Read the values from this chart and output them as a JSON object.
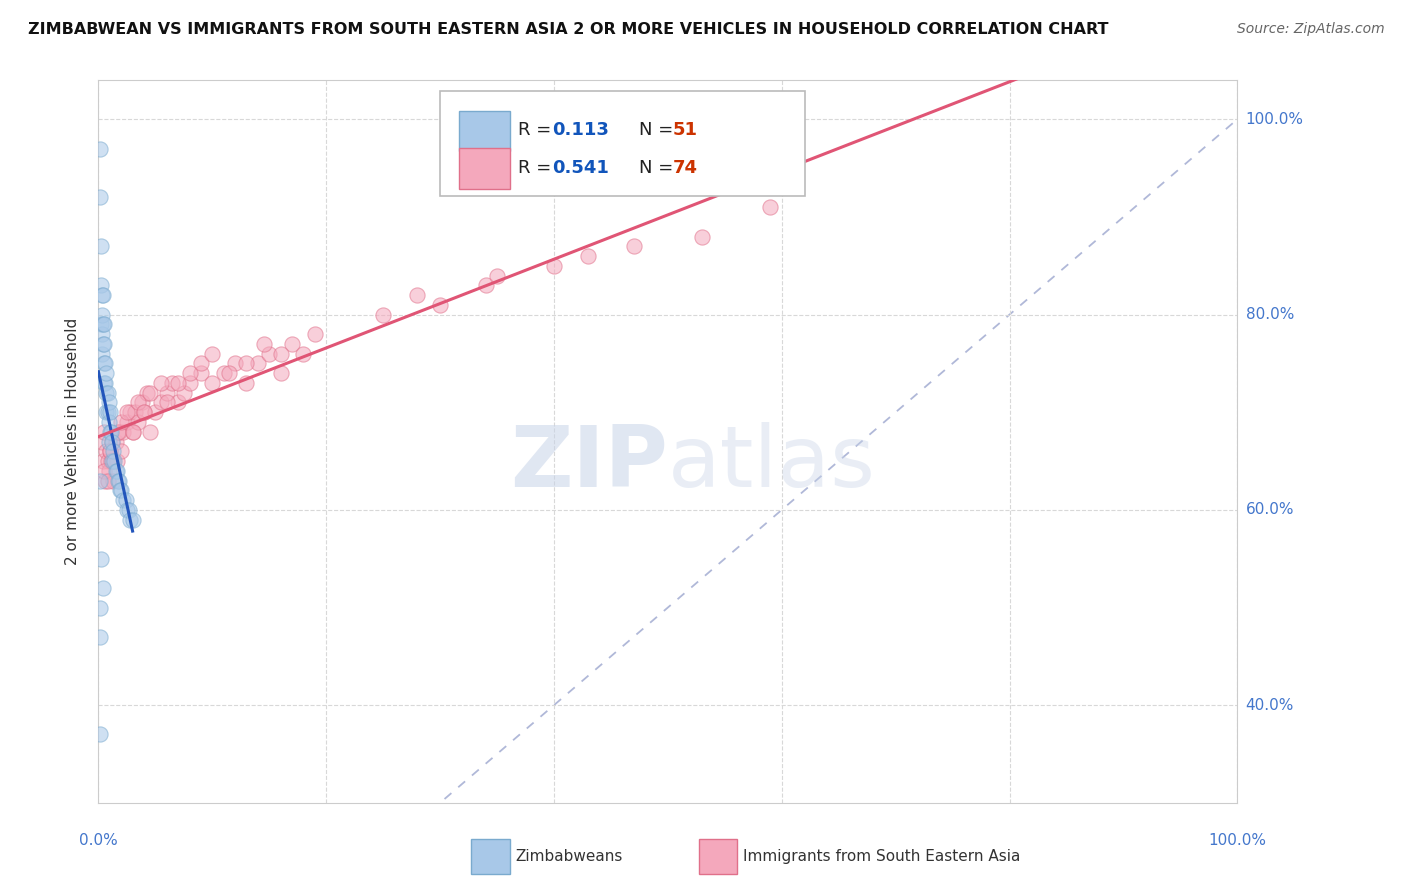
{
  "title": "ZIMBABWEAN VS IMMIGRANTS FROM SOUTH EASTERN ASIA 2 OR MORE VEHICLES IN HOUSEHOLD CORRELATION CHART",
  "source": "Source: ZipAtlas.com",
  "ylabel": "2 or more Vehicles in Household",
  "legend_entry1": {
    "label": "Zimbabweans",
    "R": 0.113,
    "N": 51,
    "color": "#a8c8e8",
    "edge": "#7aaace"
  },
  "legend_entry2": {
    "label": "Immigrants from South Eastern Asia",
    "R": 0.541,
    "N": 74,
    "color": "#f4a8bc",
    "edge": "#e0708a"
  },
  "blue_scatter_x": [
    0.001,
    0.001,
    0.002,
    0.002,
    0.002,
    0.003,
    0.003,
    0.003,
    0.003,
    0.004,
    0.004,
    0.004,
    0.005,
    0.005,
    0.005,
    0.005,
    0.006,
    0.006,
    0.007,
    0.007,
    0.007,
    0.008,
    0.008,
    0.009,
    0.009,
    0.009,
    0.01,
    0.01,
    0.011,
    0.012,
    0.012,
    0.013,
    0.014,
    0.015,
    0.016,
    0.017,
    0.018,
    0.019,
    0.02,
    0.022,
    0.024,
    0.025,
    0.027,
    0.028,
    0.03,
    0.001,
    0.002,
    0.004,
    0.001,
    0.001,
    0.001
  ],
  "blue_scatter_y": [
    0.97,
    0.92,
    0.87,
    0.83,
    0.79,
    0.82,
    0.8,
    0.78,
    0.76,
    0.82,
    0.79,
    0.77,
    0.79,
    0.77,
    0.75,
    0.73,
    0.75,
    0.73,
    0.74,
    0.72,
    0.7,
    0.72,
    0.7,
    0.71,
    0.69,
    0.67,
    0.7,
    0.68,
    0.68,
    0.67,
    0.65,
    0.66,
    0.65,
    0.64,
    0.64,
    0.63,
    0.63,
    0.62,
    0.62,
    0.61,
    0.61,
    0.6,
    0.6,
    0.59,
    0.59,
    0.63,
    0.55,
    0.52,
    0.5,
    0.47,
    0.37
  ],
  "pink_scatter_x": [
    0.003,
    0.004,
    0.005,
    0.006,
    0.007,
    0.008,
    0.009,
    0.01,
    0.011,
    0.012,
    0.013,
    0.015,
    0.016,
    0.018,
    0.02,
    0.022,
    0.025,
    0.028,
    0.03,
    0.032,
    0.035,
    0.038,
    0.04,
    0.043,
    0.045,
    0.05,
    0.055,
    0.06,
    0.065,
    0.07,
    0.075,
    0.08,
    0.09,
    0.1,
    0.11,
    0.12,
    0.13,
    0.14,
    0.15,
    0.16,
    0.17,
    0.18,
    0.005,
    0.008,
    0.01,
    0.013,
    0.017,
    0.02,
    0.025,
    0.03,
    0.035,
    0.04,
    0.045,
    0.055,
    0.06,
    0.07,
    0.08,
    0.09,
    0.1,
    0.115,
    0.13,
    0.145,
    0.16,
    0.19,
    0.25,
    0.28,
    0.3,
    0.34,
    0.35,
    0.4,
    0.43,
    0.47,
    0.53,
    0.59
  ],
  "pink_scatter_y": [
    0.67,
    0.65,
    0.68,
    0.63,
    0.66,
    0.65,
    0.64,
    0.66,
    0.65,
    0.67,
    0.63,
    0.67,
    0.65,
    0.68,
    0.66,
    0.68,
    0.69,
    0.7,
    0.68,
    0.7,
    0.69,
    0.71,
    0.7,
    0.72,
    0.68,
    0.7,
    0.71,
    0.72,
    0.73,
    0.71,
    0.72,
    0.73,
    0.74,
    0.73,
    0.74,
    0.75,
    0.73,
    0.75,
    0.76,
    0.74,
    0.77,
    0.76,
    0.64,
    0.63,
    0.66,
    0.65,
    0.68,
    0.69,
    0.7,
    0.68,
    0.71,
    0.7,
    0.72,
    0.73,
    0.71,
    0.73,
    0.74,
    0.75,
    0.76,
    0.74,
    0.75,
    0.77,
    0.76,
    0.78,
    0.8,
    0.82,
    0.81,
    0.83,
    0.84,
    0.85,
    0.86,
    0.87,
    0.88,
    0.91
  ],
  "watermark_zip": "ZIP",
  "watermark_atlas": "atlas",
  "dot_size": 120,
  "dot_alpha": 0.55,
  "blue_line_color": "#2255bb",
  "pink_line_color": "#e05575",
  "diagonal_color": "#b0b8d8",
  "grid_color": "#d8d8d8",
  "background_color": "#ffffff",
  "title_color": "#111111",
  "source_color": "#666666",
  "axis_label_color": "#4477cc",
  "R_color": "#1155bb",
  "N_color": "#cc3300",
  "xlim": [
    0.0,
    1.0
  ],
  "ylim": [
    0.3,
    1.04
  ],
  "xticks": [
    0.0,
    0.2,
    0.4,
    0.6,
    0.8,
    1.0
  ],
  "yticks": [
    0.4,
    0.6,
    0.8,
    1.0
  ]
}
